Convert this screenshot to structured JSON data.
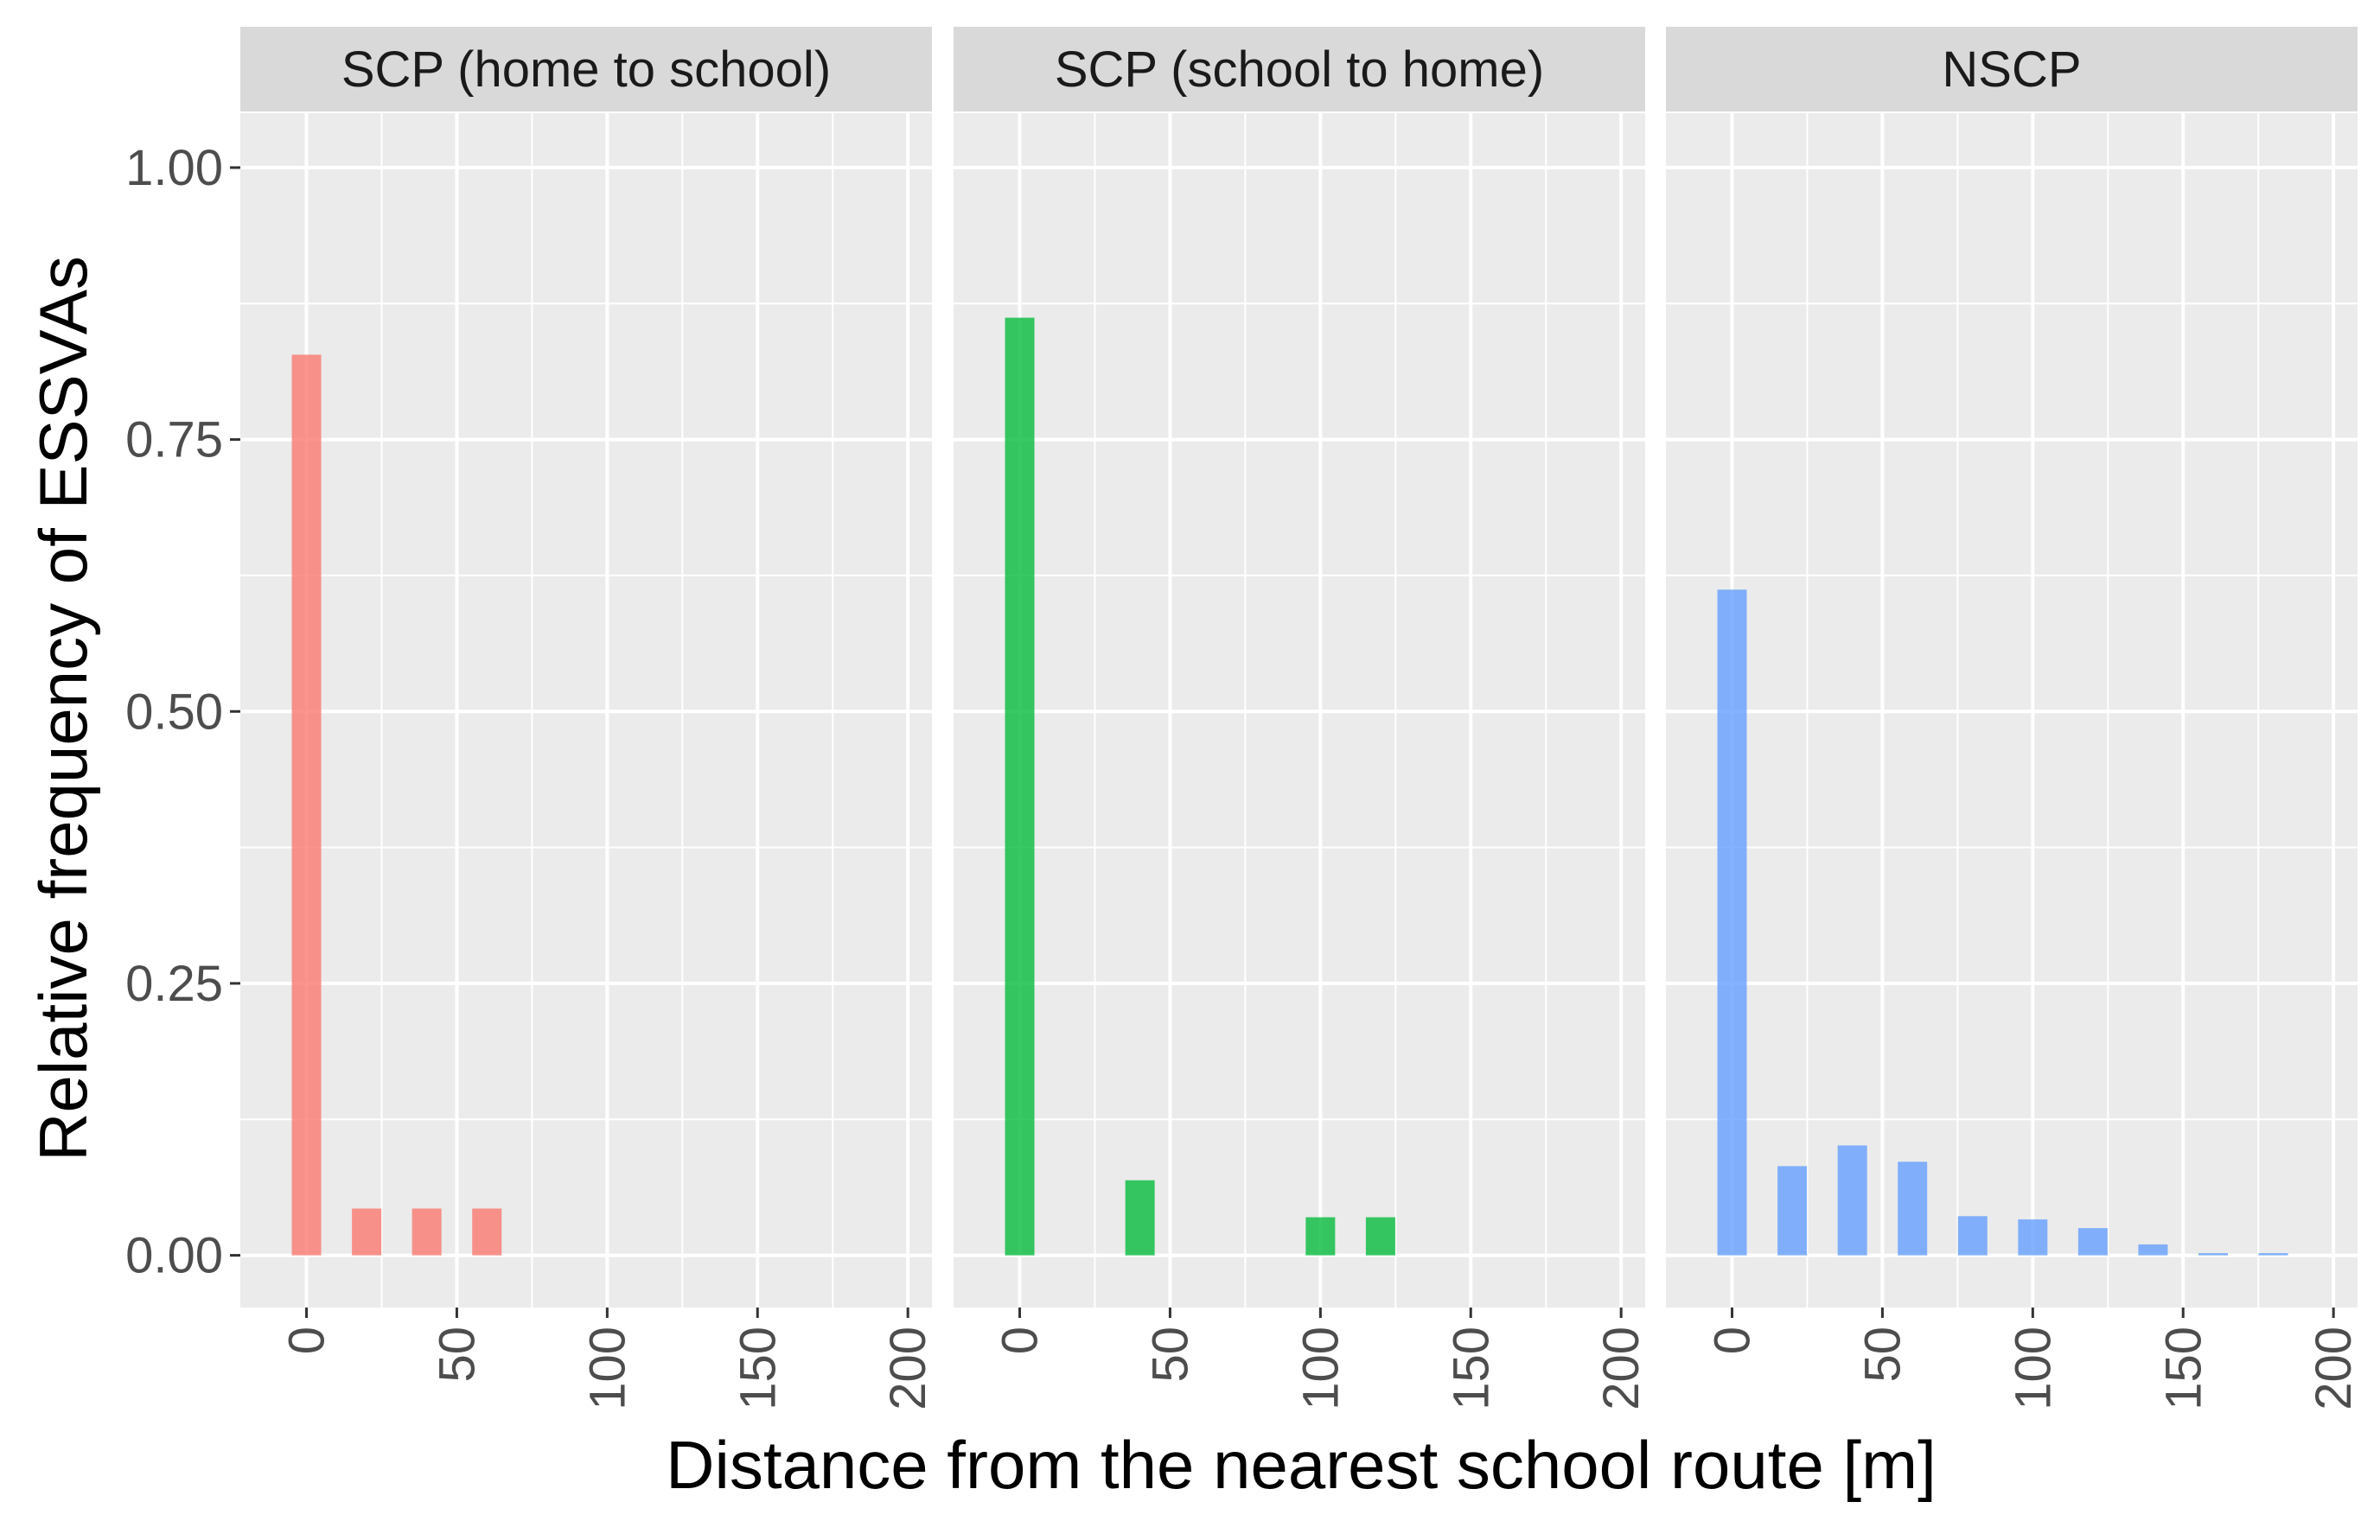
{
  "chart_data": {
    "type": "bar",
    "title": "",
    "xlabel": "Distance from the nearest school route [m]",
    "ylabel": "Relative frequency of ESSVAs",
    "xlim": [
      -22,
      208
    ],
    "ylim": [
      -0.048,
      1.05
    ],
    "x_ticks": [
      0,
      50,
      100,
      150,
      200
    ],
    "x_tick_labels": [
      "0",
      "50",
      "100",
      "150",
      "200"
    ],
    "y_ticks": [
      0,
      0.25,
      0.5,
      0.75,
      1.0
    ],
    "y_tick_labels": [
      "0.00",
      "0.25",
      "0.50",
      "0.75",
      "1.00"
    ],
    "grid": true,
    "legend": "none",
    "panels": [
      {
        "label": "SCP (home to school)",
        "color": "#F8766D",
        "x": [
          0,
          20,
          40,
          60
        ],
        "values": [
          0.828,
          0.043,
          0.043,
          0.043
        ]
      },
      {
        "label": "SCP (school to home)",
        "color": "#00BA38",
        "x": [
          0,
          40,
          100,
          120
        ],
        "values": [
          0.862,
          0.069,
          0.035,
          0.035
        ]
      },
      {
        "label": "NSCP",
        "color": "#619CFF",
        "x": [
          0,
          20,
          40,
          60,
          80,
          100,
          120,
          140,
          160,
          180
        ],
        "values": [
          0.612,
          0.082,
          0.101,
          0.086,
          0.036,
          0.033,
          0.025,
          0.01,
          0.002,
          0.002
        ]
      }
    ]
  }
}
